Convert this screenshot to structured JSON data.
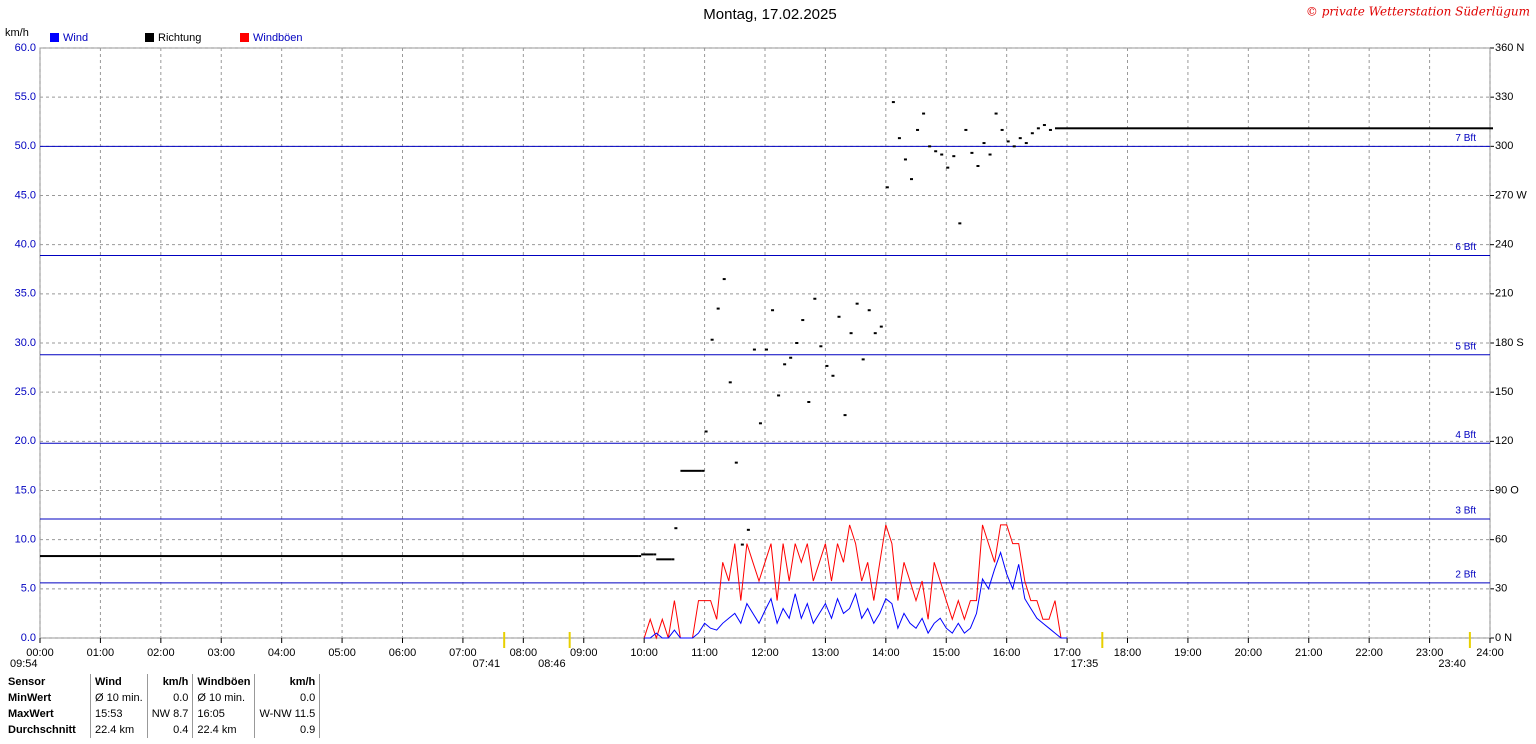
{
  "chart_data": {
    "type": "line",
    "title": "Montag, 17.02.2025",
    "credit": "© private Wetterstation Süderlügum",
    "y_label": "km/h",
    "xlim": [
      0,
      24
    ],
    "xticks": [
      {
        "value": 0,
        "label": "00:00"
      },
      {
        "value": 1,
        "label": "01:00"
      },
      {
        "value": 2,
        "label": "02:00"
      },
      {
        "value": 3,
        "label": "03:00"
      },
      {
        "value": 4,
        "label": "04:00"
      },
      {
        "value": 5,
        "label": "05:00"
      },
      {
        "value": 6,
        "label": "06:00"
      },
      {
        "value": 7,
        "label": "07:00"
      },
      {
        "value": 8,
        "label": "08:00"
      },
      {
        "value": 9,
        "label": "09:00"
      },
      {
        "value": 10,
        "label": "10:00"
      },
      {
        "value": 11,
        "label": "11:00"
      },
      {
        "value": 12,
        "label": "12:00"
      },
      {
        "value": 13,
        "label": "13:00"
      },
      {
        "value": 14,
        "label": "14:00"
      },
      {
        "value": 15,
        "label": "15:00"
      },
      {
        "value": 16,
        "label": "16:00"
      },
      {
        "value": 17,
        "label": "17:00"
      },
      {
        "value": 18,
        "label": "18:00"
      },
      {
        "value": 19,
        "label": "19:00"
      },
      {
        "value": 20,
        "label": "20:00"
      },
      {
        "value": 21,
        "label": "21:00"
      },
      {
        "value": 22,
        "label": "22:00"
      },
      {
        "value": 23,
        "label": "23:00"
      },
      {
        "value": 24,
        "label": "24:00"
      }
    ],
    "ylim": [
      0,
      60
    ],
    "yticks": [
      {
        "value": 0,
        "label": "0.0"
      },
      {
        "value": 5,
        "label": "5.0"
      },
      {
        "value": 10,
        "label": "10.0"
      },
      {
        "value": 15,
        "label": "15.0"
      },
      {
        "value": 20,
        "label": "20.0"
      },
      {
        "value": 25,
        "label": "25.0"
      },
      {
        "value": 30,
        "label": "30.0"
      },
      {
        "value": 35,
        "label": "35.0"
      },
      {
        "value": 40,
        "label": "40.0"
      },
      {
        "value": 45,
        "label": "45.0"
      },
      {
        "value": 50,
        "label": "50.0"
      },
      {
        "value": 55,
        "label": "55.0"
      },
      {
        "value": 60,
        "label": "60.0"
      }
    ],
    "y2lim": [
      0,
      360
    ],
    "y2ticks": [
      {
        "value": 0,
        "label": "0 N"
      },
      {
        "value": 30,
        "label": "30"
      },
      {
        "value": 60,
        "label": "60"
      },
      {
        "value": 90,
        "label": "90 O"
      },
      {
        "value": 120,
        "label": "120"
      },
      {
        "value": 150,
        "label": "150"
      },
      {
        "value": 180,
        "label": "180 S"
      },
      {
        "value": 210,
        "label": "210"
      },
      {
        "value": 240,
        "label": "240"
      },
      {
        "value": 270,
        "label": "270 W"
      },
      {
        "value": 300,
        "label": "300"
      },
      {
        "value": 330,
        "label": "330"
      },
      {
        "value": 360,
        "label": "360 N"
      }
    ],
    "grid": true,
    "bft_lines": [
      {
        "value": 5.6,
        "label": "2 Bft"
      },
      {
        "value": 12.1,
        "label": "3 Bft"
      },
      {
        "value": 19.8,
        "label": "4 Bft"
      },
      {
        "value": 28.8,
        "label": "5 Bft"
      },
      {
        "value": 38.9,
        "label": "6 Bft"
      },
      {
        "value": 50,
        "label": "7 Bft"
      }
    ],
    "sun_markers": [
      {
        "value": 7.683,
        "label": "07:41"
      },
      {
        "value": 8.767,
        "label": "08:46"
      },
      {
        "value": 17.583,
        "label": "17:35"
      },
      {
        "value": 23.667,
        "label": "23:40"
      }
    ],
    "moon_label": "09:54",
    "series": [
      {
        "name": "Wind",
        "color": "#0000ff",
        "x": [
          10.0,
          10.1,
          10.2,
          10.3,
          10.4,
          10.5,
          10.6,
          10.7,
          10.8,
          10.9,
          11.0,
          11.1,
          11.2,
          11.3,
          11.4,
          11.5,
          11.6,
          11.7,
          11.8,
          11.9,
          12.0,
          12.1,
          12.2,
          12.3,
          12.4,
          12.5,
          12.6,
          12.7,
          12.8,
          12.9,
          13.0,
          13.1,
          13.2,
          13.3,
          13.4,
          13.5,
          13.6,
          13.7,
          13.8,
          13.9,
          14.0,
          14.1,
          14.2,
          14.3,
          14.4,
          14.5,
          14.6,
          14.7,
          14.8,
          14.9,
          15.0,
          15.1,
          15.2,
          15.3,
          15.4,
          15.5,
          15.6,
          15.7,
          15.8,
          15.9,
          16.0,
          16.1,
          16.2,
          16.3,
          16.4,
          16.5,
          16.6,
          16.7,
          16.8,
          16.9,
          17.0
        ],
        "values": [
          0,
          0,
          0.5,
          0,
          0,
          0.8,
          0,
          0,
          0,
          0.5,
          1.5,
          1.0,
          0.8,
          1.5,
          2.0,
          2.5,
          1.5,
          3.5,
          2.5,
          1.5,
          2.8,
          4.0,
          1.5,
          3.0,
          2.0,
          4.5,
          2.0,
          3.5,
          1.5,
          2.5,
          3.5,
          2.0,
          4.0,
          2.5,
          3.0,
          4.5,
          2.0,
          3.0,
          1.5,
          2.5,
          4.0,
          3.5,
          1.0,
          2.5,
          1.5,
          1.0,
          2.0,
          0.5,
          1.5,
          2.0,
          1.0,
          0.5,
          1.5,
          0.5,
          1.0,
          2.5,
          6.0,
          5.0,
          7.0,
          8.7,
          6.5,
          5.0,
          7.5,
          4.0,
          3.0,
          2.0,
          1.5,
          1.0,
          0.5,
          0,
          0
        ]
      },
      {
        "name": "Richtung",
        "color": "#000000",
        "axis": "y2",
        "x": [
          0,
          9.9,
          9.95,
          10.15,
          10.2,
          10.45,
          10.5,
          10.6,
          10.95,
          11.0,
          11.1,
          11.2,
          11.3,
          11.4,
          11.5,
          11.6,
          11.7,
          11.8,
          11.9,
          12.0,
          12.1,
          12.2,
          12.3,
          12.4,
          12.5,
          12.6,
          12.7,
          12.8,
          12.9,
          13.0,
          13.1,
          13.2,
          13.3,
          13.4,
          13.5,
          13.6,
          13.7,
          13.8,
          13.9,
          14.0,
          14.1,
          14.2,
          14.3,
          14.4,
          14.5,
          14.6,
          14.7,
          14.8,
          14.9,
          15.0,
          15.1,
          15.2,
          15.3,
          15.4,
          15.5,
          15.6,
          15.7,
          15.8,
          15.9,
          16.0,
          16.1,
          16.2,
          16.3,
          16.4,
          16.5,
          16.6,
          16.7,
          16.8,
          24
        ],
        "values": [
          50,
          50,
          51,
          51,
          48,
          48,
          67,
          102,
          102,
          126,
          182,
          201,
          219,
          156,
          107,
          57,
          66,
          176,
          131,
          176,
          200,
          148,
          167,
          171,
          180,
          194,
          144,
          207,
          178,
          166,
          160,
          196,
          136,
          186,
          204,
          170,
          200,
          186,
          190,
          275,
          327,
          305,
          292,
          280,
          310,
          320,
          300,
          297,
          295,
          287,
          294,
          253,
          310,
          296,
          288,
          302,
          295,
          320,
          310,
          303,
          300,
          305,
          302,
          308,
          311,
          313,
          310,
          311,
          311
        ]
      },
      {
        "name": "Windböen",
        "color": "#ff0000",
        "x": [
          10.0,
          10.1,
          10.2,
          10.3,
          10.4,
          10.5,
          10.6,
          10.7,
          10.8,
          10.9,
          11.0,
          11.1,
          11.2,
          11.3,
          11.4,
          11.5,
          11.6,
          11.7,
          11.8,
          11.9,
          12.0,
          12.1,
          12.2,
          12.3,
          12.4,
          12.5,
          12.6,
          12.7,
          12.8,
          12.9,
          13.0,
          13.1,
          13.2,
          13.3,
          13.4,
          13.5,
          13.6,
          13.7,
          13.8,
          13.9,
          14.0,
          14.1,
          14.2,
          14.3,
          14.4,
          14.5,
          14.6,
          14.7,
          14.8,
          14.9,
          15.0,
          15.1,
          15.2,
          15.3,
          15.4,
          15.5,
          15.6,
          15.7,
          15.8,
          15.9,
          16.0,
          16.1,
          16.2,
          16.3,
          16.4,
          16.5,
          16.6,
          16.7,
          16.8,
          16.9,
          17.0
        ],
        "values": [
          0,
          1.9,
          0,
          1.9,
          0,
          3.8,
          0,
          0,
          0,
          3.8,
          3.8,
          3.8,
          1.9,
          7.7,
          5.8,
          9.6,
          3.8,
          9.6,
          7.7,
          5.8,
          7.7,
          9.6,
          3.8,
          9.6,
          5.8,
          9.6,
          7.7,
          9.6,
          5.8,
          7.7,
          9.6,
          5.8,
          9.6,
          7.7,
          11.5,
          9.6,
          5.8,
          7.7,
          3.8,
          7.7,
          11.5,
          9.6,
          3.8,
          7.7,
          5.8,
          3.8,
          5.8,
          1.9,
          7.7,
          5.8,
          3.8,
          1.9,
          3.8,
          1.9,
          3.8,
          3.8,
          11.5,
          9.6,
          7.7,
          11.5,
          11.5,
          9.6,
          9.6,
          5.8,
          3.8,
          3.8,
          1.9,
          1.9,
          3.8,
          0,
          0
        ]
      }
    ]
  },
  "table": {
    "header": [
      "Sensor",
      "Wind",
      "km/h",
      "Windböen",
      "km/h"
    ],
    "rows": [
      [
        "MinWert",
        "Ø 10 min.",
        "0.0",
        "Ø 10 min.",
        "0.0"
      ],
      [
        "MaxWert",
        "15:53",
        "NW 8.7",
        "16:05",
        "W-NW 11.5"
      ],
      [
        "Durchschnitt",
        "22.4 km",
        "0.4",
        "22.4 km",
        "0.9"
      ]
    ]
  }
}
